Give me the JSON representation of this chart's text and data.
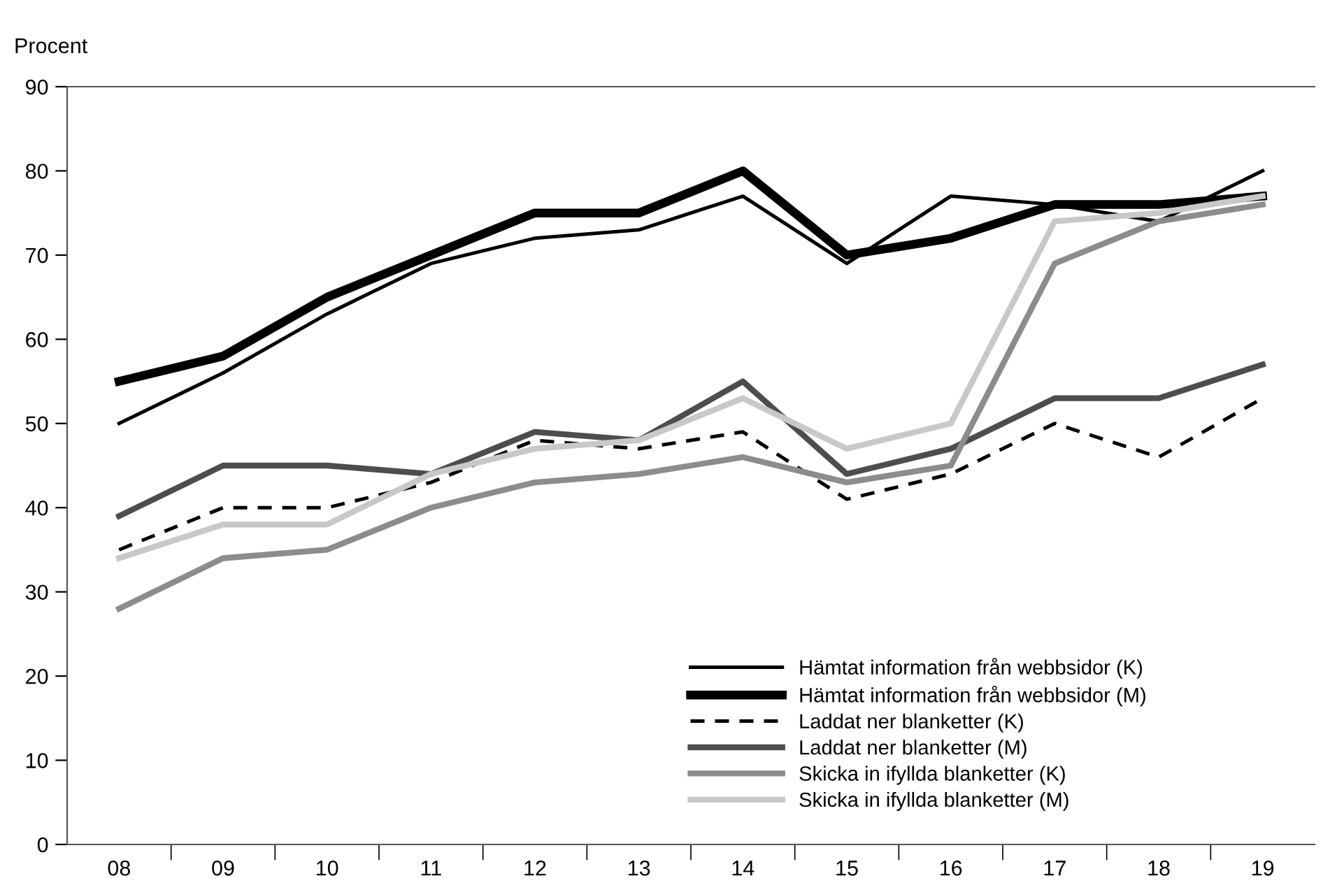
{
  "chart_data": {
    "type": "line",
    "ylabel": "Procent",
    "categories": [
      "08",
      "09",
      "10",
      "11",
      "12",
      "13",
      "14",
      "15",
      "16",
      "17",
      "18",
      "19"
    ],
    "ylim": [
      0,
      90
    ],
    "yticks": [
      0,
      10,
      20,
      30,
      40,
      50,
      60,
      70,
      80,
      90
    ],
    "grid": false,
    "legend": "bottom right",
    "marker": "none",
    "series": [
      {
        "name": "Hämtat information från webbsidor (K)",
        "color": "#000000",
        "line_style": "solid",
        "values": [
          50,
          56,
          63,
          69,
          72,
          73,
          77,
          69,
          77,
          76,
          74,
          80
        ]
      },
      {
        "name": "Hämtat information från webbsidor (M)",
        "color": "#000000",
        "line_style": "solid",
        "values": [
          55,
          58,
          65,
          70,
          75,
          75,
          80,
          70,
          72,
          76,
          76,
          77
        ]
      },
      {
        "name": "Laddat ner blanketter (K)",
        "color": "#000000",
        "line_style": "dashed",
        "values": [
          35,
          40,
          40,
          43,
          48,
          47,
          49,
          41,
          44,
          50,
          46,
          53
        ]
      },
      {
        "name": "Laddat ner blanketter (M)",
        "color": "#4d4d4d",
        "line_style": "solid",
        "values": [
          39,
          45,
          45,
          44,
          49,
          48,
          55,
          44,
          47,
          53,
          53,
          57
        ]
      },
      {
        "name": "Skicka in ifyllda blanketter (K)",
        "color": "#8c8c8c",
        "line_style": "solid",
        "values": [
          28,
          34,
          35,
          40,
          43,
          44,
          46,
          43,
          45,
          69,
          74,
          76
        ]
      },
      {
        "name": "Skicka in ifyllda blanketter (M)",
        "color": "#c8c8c8",
        "line_style": "solid",
        "values": [
          34,
          38,
          38,
          44,
          47,
          48,
          53,
          47,
          50,
          74,
          75,
          77
        ]
      }
    ]
  }
}
